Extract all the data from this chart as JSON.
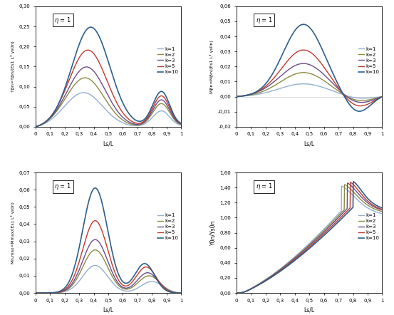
{
  "k_values": [
    1,
    2,
    3,
    5,
    10
  ],
  "colors": {
    "1": "#92AFCF",
    "2": "#8B8B40",
    "3": "#6B4C8B",
    "5": "#C0392B",
    "10": "#2E5F8A"
  },
  "line_widths": [
    1.0,
    1.0,
    1.0,
    1.0,
    1.2
  ],
  "eta": 1,
  "n_points": 500,
  "plot1": {
    "ylabel": "Tβn=Tβn/(Es1 L³ γs0n)",
    "xlabel": "Ls/L",
    "ylim": [
      0.0,
      0.3
    ],
    "yticks": [
      0.0,
      0.05,
      0.1,
      0.15,
      0.2,
      0.25,
      0.3
    ],
    "yticklabels": [
      "0,00",
      "0,05",
      "0,10",
      "0,15",
      "0,20",
      "0,25",
      "0,30"
    ]
  },
  "plot2": {
    "ylabel": "Mβn=Mβn/(Es1 L³ γs0n)",
    "xlabel": "Ls/L",
    "ylim": [
      -0.02,
      0.06
    ],
    "yticks": [
      -0.02,
      -0.01,
      0.0,
      0.01,
      0.02,
      0.03,
      0.04,
      0.05,
      0.06
    ],
    "yticklabels": [
      "-0,02",
      "-0,01",
      "0,00",
      "0,01",
      "0,02",
      "0,03",
      "0,04",
      "0,05",
      "0,06"
    ]
  },
  "plot3": {
    "ylabel": "Mn,max=Mmax/(Es1 L³ γs0n)",
    "xlabel": "Ls/L",
    "ylim": [
      0.0,
      0.07
    ],
    "yticks": [
      0.0,
      0.01,
      0.02,
      0.03,
      0.04,
      0.05,
      0.06,
      0.07
    ],
    "yticklabels": [
      "0,00",
      "0,01",
      "0,02",
      "0,03",
      "0,04",
      "0,05",
      "0,06",
      "0,07"
    ]
  },
  "plot4": {
    "ylabel": "Y0n/Ys0n",
    "xlabel": "Ls/L",
    "ylim": [
      0.0,
      1.6
    ],
    "yticks": [
      0.0,
      0.2,
      0.4,
      0.6,
      0.8,
      1.0,
      1.2,
      1.4,
      1.6
    ],
    "yticklabels": [
      "0,00",
      "0,20",
      "0,40",
      "0,60",
      "0,80",
      "1,00",
      "1,20",
      "1,40",
      "1,60"
    ]
  },
  "legend_labels": [
    "k=1",
    "k=2",
    "k=3",
    "k=5",
    "k=10"
  ],
  "background_color": "#FFFFFF"
}
